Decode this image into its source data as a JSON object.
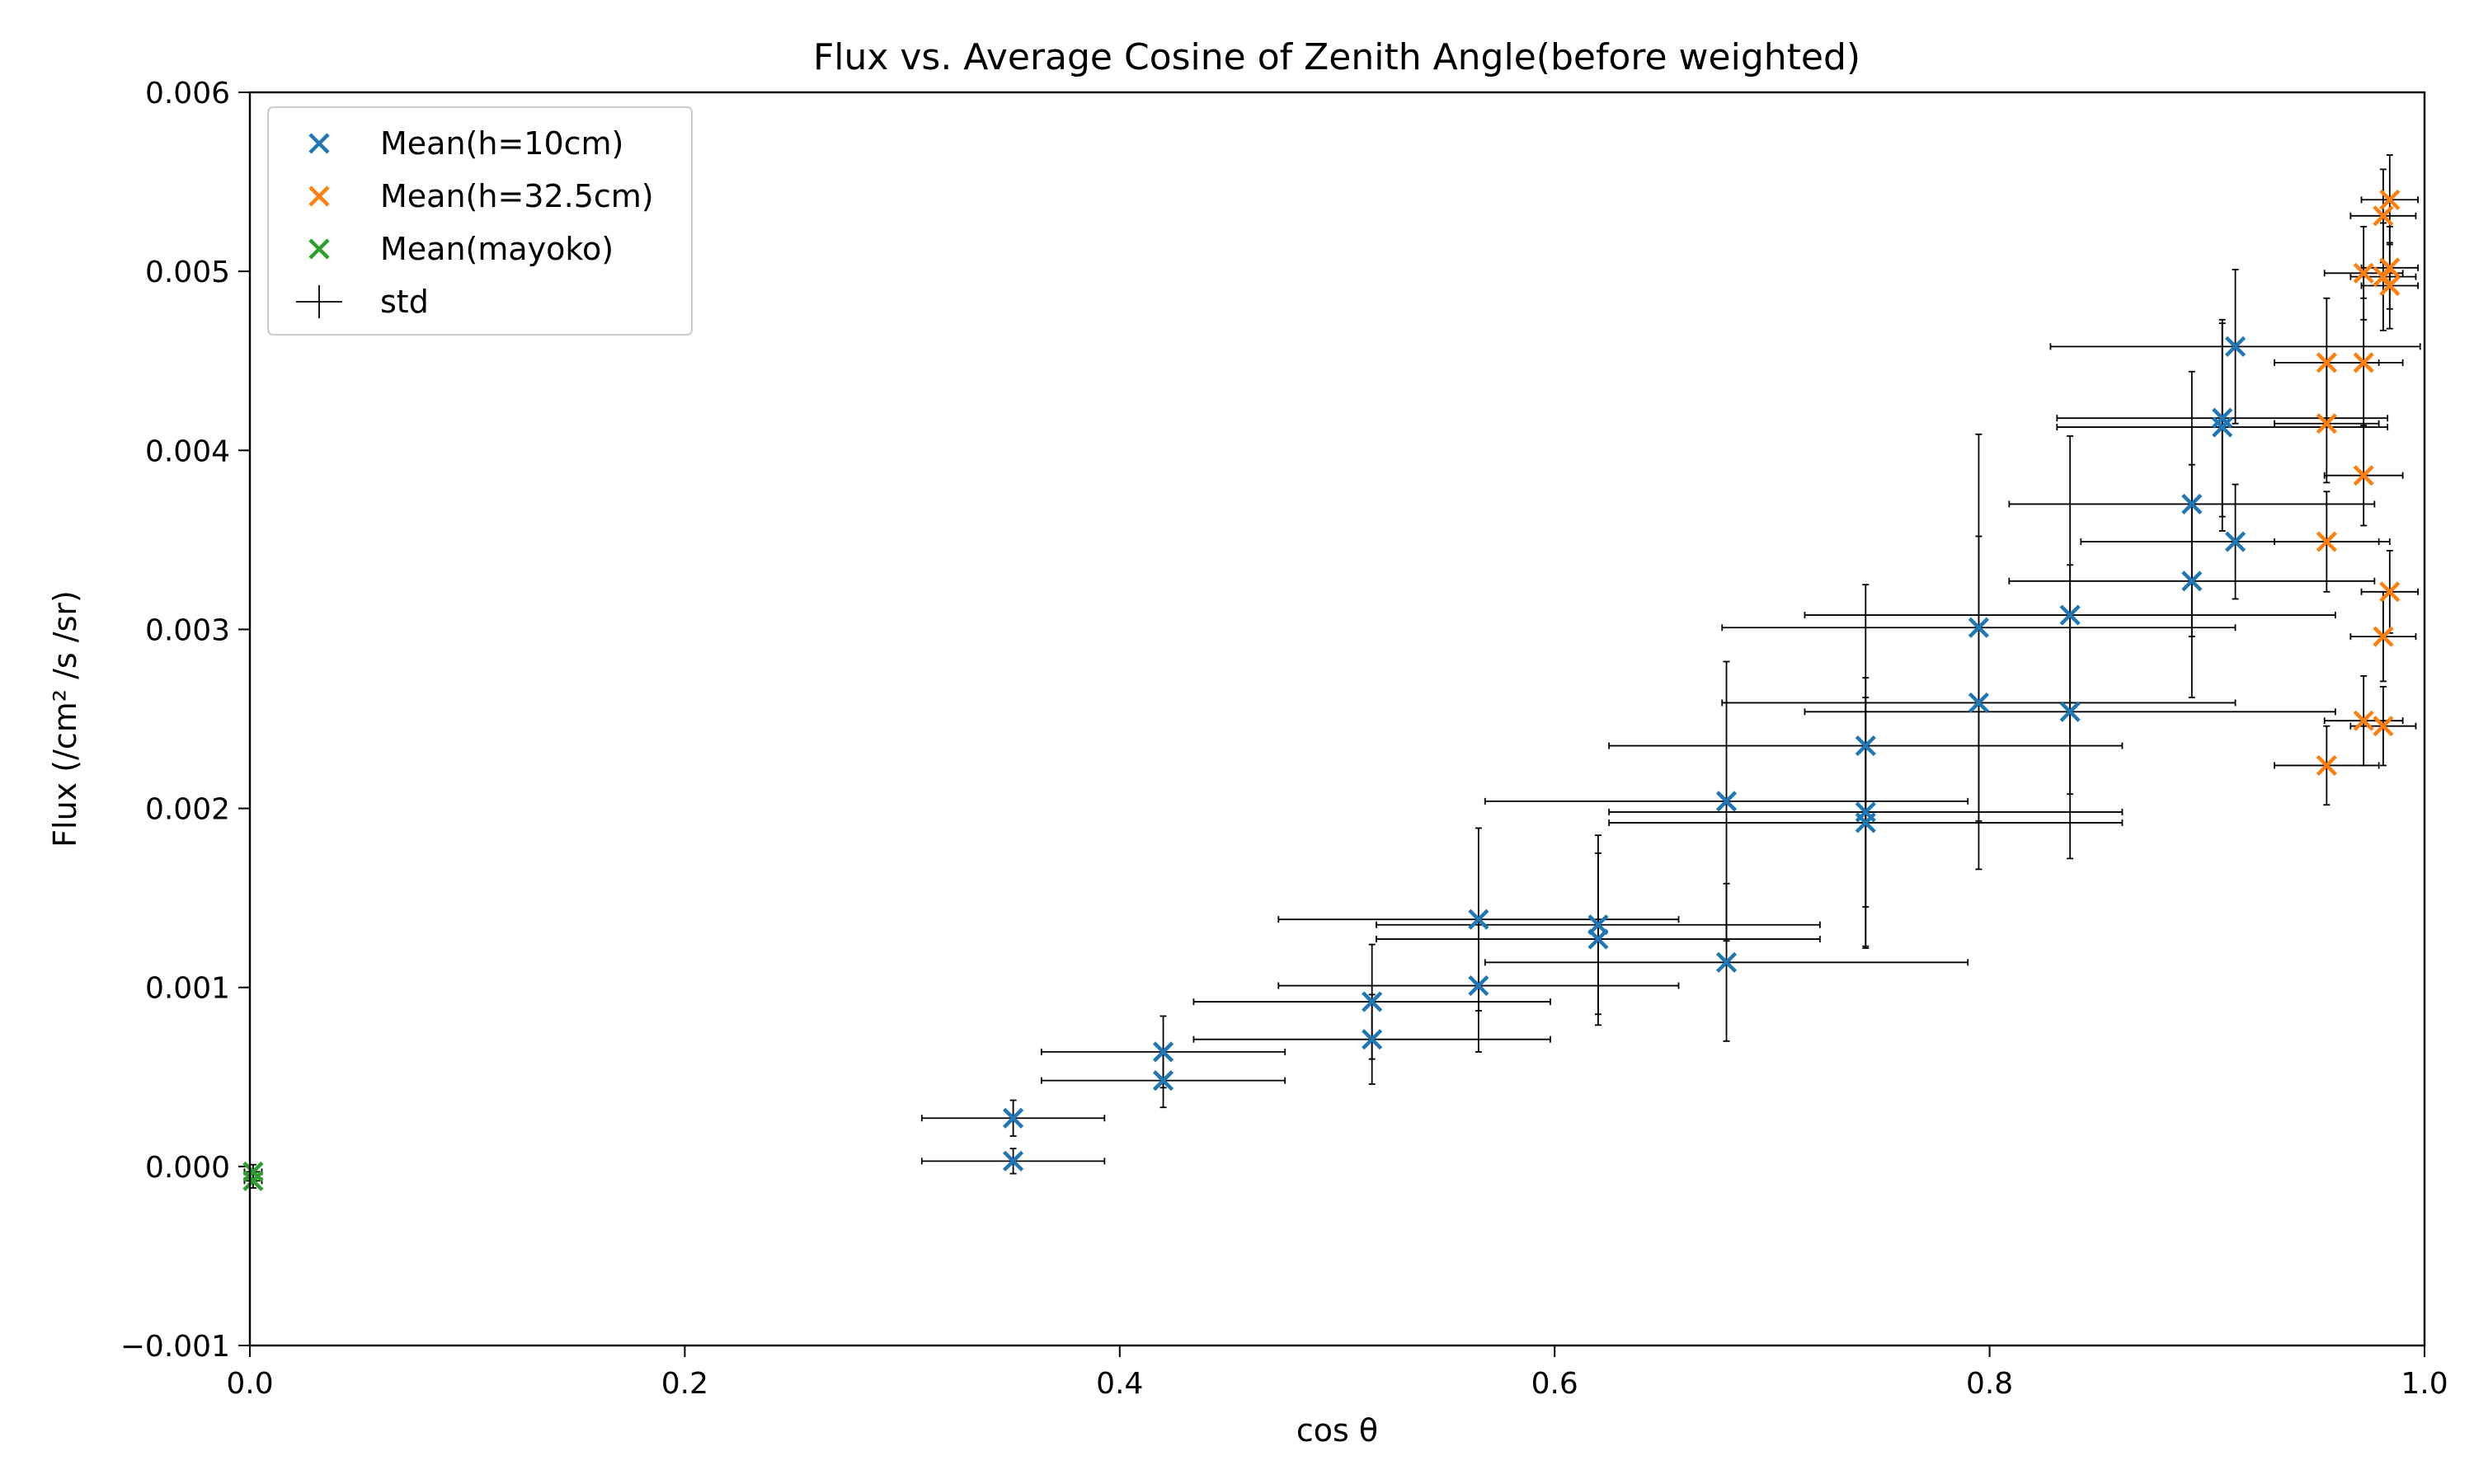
{
  "chart_data": {
    "type": "scatter",
    "title": "Flux vs. Average Cosine of Zenith Angle(before weighted)",
    "xlabel": "cos θ",
    "ylabel": "Flux (/cm² /s /sr)",
    "xlim": [
      0.0,
      1.0
    ],
    "ylim": [
      -0.001,
      0.006
    ],
    "x_ticks": [
      "0.0",
      "0.2",
      "0.4",
      "0.6",
      "0.8",
      "1.0"
    ],
    "y_ticks": [
      "−0.001",
      "0.000",
      "0.001",
      "0.002",
      "0.003",
      "0.004",
      "0.005",
      "0.006"
    ],
    "legend_position": "top-left",
    "errorbar_label": "std",
    "errorbar_color": "#000000",
    "series": [
      {
        "name": "Mean(h=10cm)",
        "color": "#1f77b4",
        "marker": "x",
        "points": [
          {
            "x": 0.351,
            "y": 3e-05,
            "xerr": 0.042,
            "yerr": 7e-05
          },
          {
            "x": 0.351,
            "y": 0.00027,
            "xerr": 0.042,
            "yerr": 0.0001
          },
          {
            "x": 0.42,
            "y": 0.00048,
            "xerr": 0.056,
            "yerr": 0.00015
          },
          {
            "x": 0.42,
            "y": 0.00064,
            "xerr": 0.056,
            "yerr": 0.0002
          },
          {
            "x": 0.516,
            "y": 0.00071,
            "xerr": 0.082,
            "yerr": 0.00025
          },
          {
            "x": 0.516,
            "y": 0.00092,
            "xerr": 0.082,
            "yerr": 0.00032
          },
          {
            "x": 0.565,
            "y": 0.00101,
            "xerr": 0.092,
            "yerr": 0.00037
          },
          {
            "x": 0.565,
            "y": 0.00138,
            "xerr": 0.092,
            "yerr": 0.00051
          },
          {
            "x": 0.62,
            "y": 0.00127,
            "xerr": 0.102,
            "yerr": 0.00048
          },
          {
            "x": 0.62,
            "y": 0.00135,
            "xerr": 0.102,
            "yerr": 0.0005
          },
          {
            "x": 0.679,
            "y": 0.00114,
            "xerr": 0.111,
            "yerr": 0.00044
          },
          {
            "x": 0.679,
            "y": 0.00204,
            "xerr": 0.111,
            "yerr": 0.00078
          },
          {
            "x": 0.743,
            "y": 0.00192,
            "xerr": 0.118,
            "yerr": 0.0007
          },
          {
            "x": 0.743,
            "y": 0.00198,
            "xerr": 0.118,
            "yerr": 0.00075
          },
          {
            "x": 0.743,
            "y": 0.00235,
            "xerr": 0.118,
            "yerr": 0.0009
          },
          {
            "x": 0.795,
            "y": 0.00259,
            "xerr": 0.118,
            "yerr": 0.00093
          },
          {
            "x": 0.795,
            "y": 0.00301,
            "xerr": 0.118,
            "yerr": 0.00108
          },
          {
            "x": 0.837,
            "y": 0.00254,
            "xerr": 0.122,
            "yerr": 0.00082
          },
          {
            "x": 0.837,
            "y": 0.00308,
            "xerr": 0.122,
            "yerr": 0.001
          },
          {
            "x": 0.893,
            "y": 0.00327,
            "xerr": 0.084,
            "yerr": 0.00065
          },
          {
            "x": 0.893,
            "y": 0.0037,
            "xerr": 0.084,
            "yerr": 0.00074
          },
          {
            "x": 0.913,
            "y": 0.00349,
            "xerr": 0.071,
            "yerr": 0.00032
          },
          {
            "x": 0.907,
            "y": 0.00413,
            "xerr": 0.076,
            "yerr": 0.00058
          },
          {
            "x": 0.907,
            "y": 0.00418,
            "xerr": 0.076,
            "yerr": 0.00055
          },
          {
            "x": 0.913,
            "y": 0.00458,
            "xerr": 0.085,
            "yerr": 0.00043
          }
        ]
      },
      {
        "name": "Mean(h=32.5cm)",
        "color": "#ff7f0e",
        "marker": "x",
        "points": [
          {
            "x": 0.955,
            "y": 0.00224,
            "xerr": 0.024,
            "yerr": 0.00022
          },
          {
            "x": 0.972,
            "y": 0.00249,
            "xerr": 0.018,
            "yerr": 0.00025
          },
          {
            "x": 0.981,
            "y": 0.00246,
            "xerr": 0.015,
            "yerr": 0.00022
          },
          {
            "x": 0.981,
            "y": 0.00296,
            "xerr": 0.015,
            "yerr": 0.00025
          },
          {
            "x": 0.984,
            "y": 0.00321,
            "xerr": 0.013,
            "yerr": 0.00023
          },
          {
            "x": 0.955,
            "y": 0.00349,
            "xerr": 0.024,
            "yerr": 0.00028
          },
          {
            "x": 0.972,
            "y": 0.00386,
            "xerr": 0.018,
            "yerr": 0.00028
          },
          {
            "x": 0.955,
            "y": 0.00415,
            "xerr": 0.024,
            "yerr": 0.00033
          },
          {
            "x": 0.955,
            "y": 0.00449,
            "xerr": 0.024,
            "yerr": 0.00036
          },
          {
            "x": 0.972,
            "y": 0.00449,
            "xerr": 0.018,
            "yerr": 0.00036
          },
          {
            "x": 0.972,
            "y": 0.00499,
            "xerr": 0.018,
            "yerr": 0.00026
          },
          {
            "x": 0.981,
            "y": 0.00497,
            "xerr": 0.015,
            "yerr": 0.0003
          },
          {
            "x": 0.984,
            "y": 0.00492,
            "xerr": 0.013,
            "yerr": 0.00024
          },
          {
            "x": 0.984,
            "y": 0.00502,
            "xerr": 0.013,
            "yerr": 0.00023
          },
          {
            "x": 0.981,
            "y": 0.00531,
            "xerr": 0.015,
            "yerr": 0.00026
          },
          {
            "x": 0.984,
            "y": 0.0054,
            "xerr": 0.013,
            "yerr": 0.00025
          }
        ]
      },
      {
        "name": "Mean(mayoko)",
        "color": "#2ca02c",
        "marker": "x",
        "points": [
          {
            "x": 0.0015,
            "y": -3e-05,
            "xerr": 0.004,
            "yerr": 4e-05
          },
          {
            "x": 0.0015,
            "y": -8e-05,
            "xerr": 0.004,
            "yerr": 4e-05
          }
        ]
      }
    ]
  }
}
